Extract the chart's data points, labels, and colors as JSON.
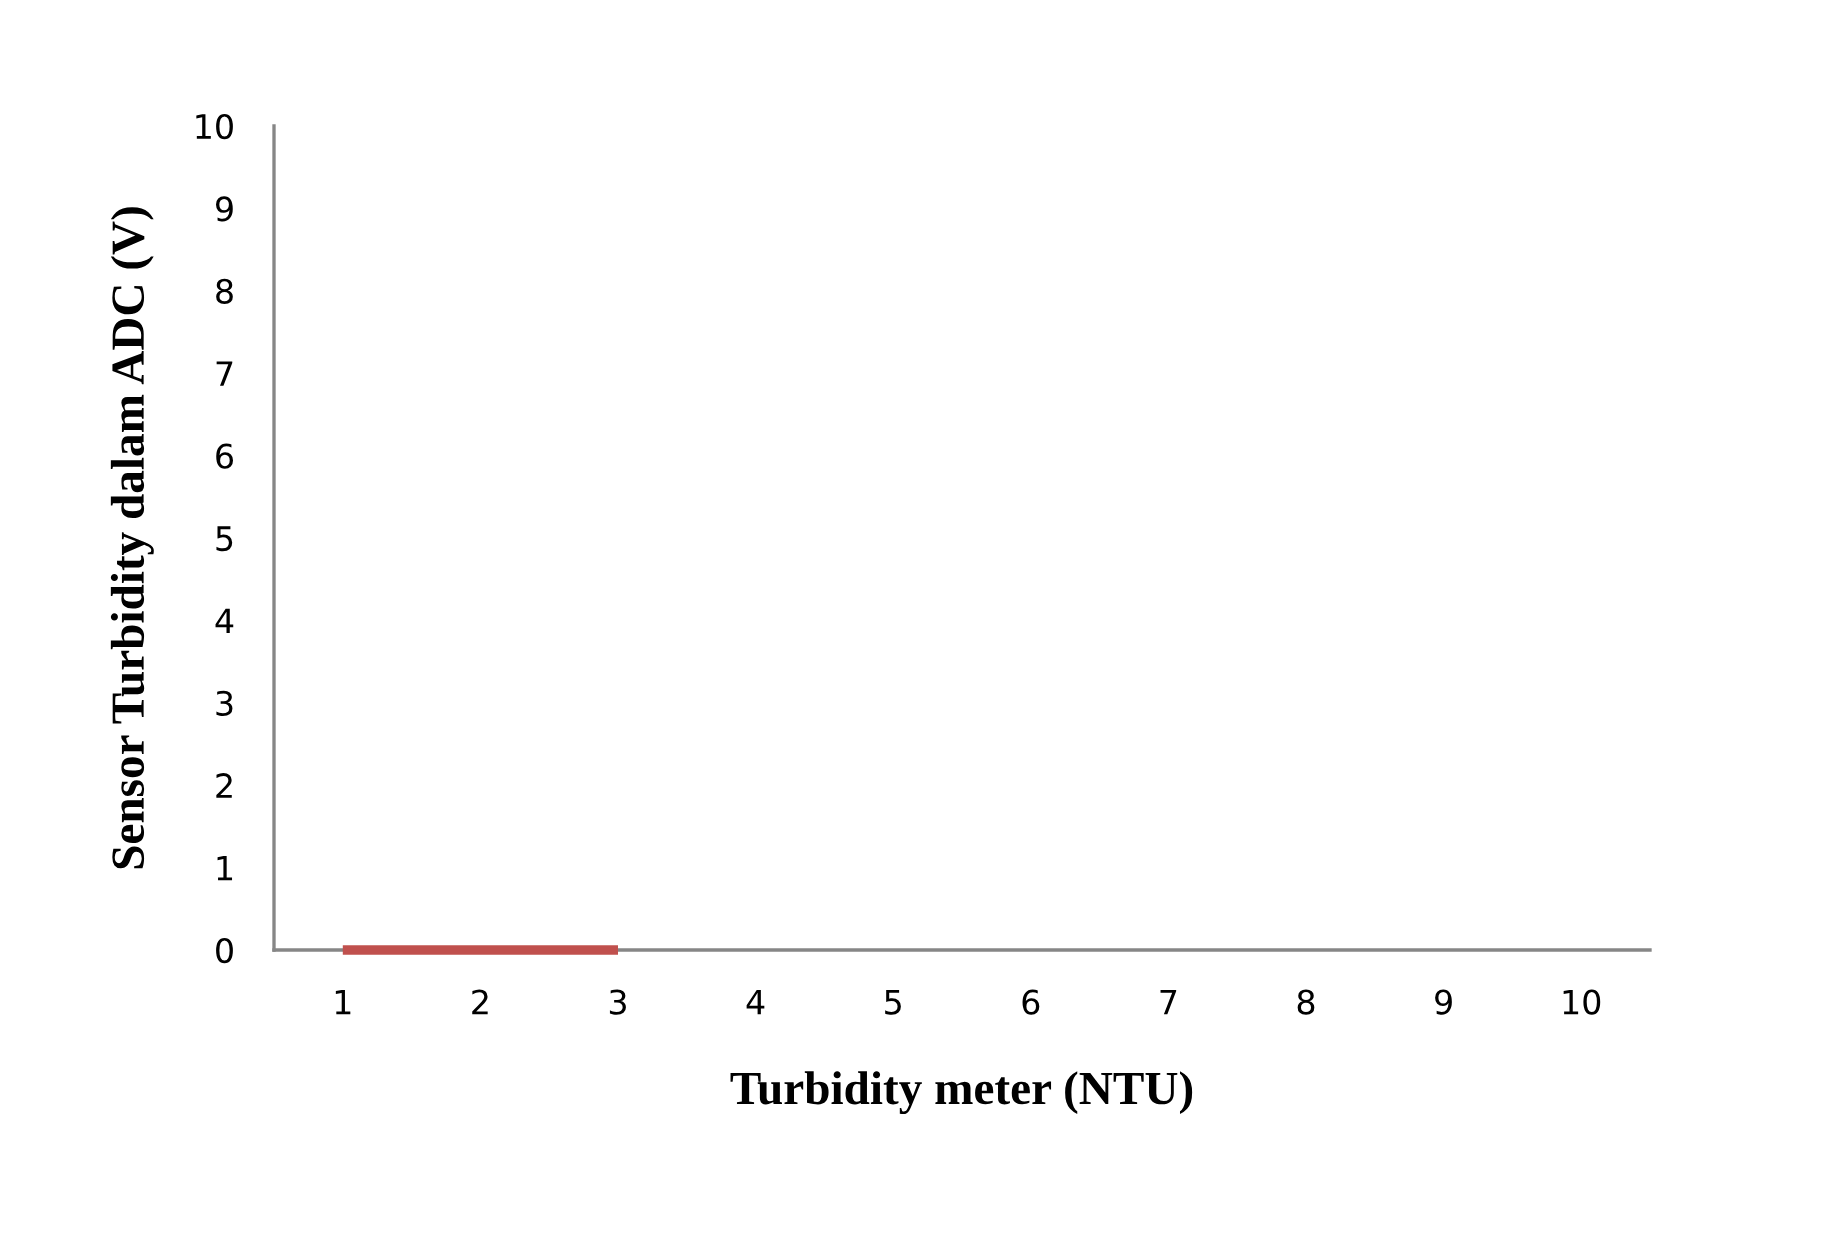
{
  "chart_data": {
    "type": "line",
    "xlabel": "Turbidity meter (NTU)",
    "ylabel": "Sensor Turbidity dalam ADC (V)",
    "categories": [
      "1",
      "2",
      "3",
      "4",
      "5",
      "6",
      "7",
      "8",
      "9",
      "10"
    ],
    "series": [
      {
        "color": "#c0504d",
        "values": [
          0,
          0,
          0,
          null,
          null,
          null,
          null,
          null,
          null,
          null
        ]
      }
    ],
    "ylim": [
      0,
      10
    ],
    "yticks": [
      0,
      1,
      2,
      3,
      4,
      5,
      6,
      7,
      8,
      9,
      10
    ],
    "grid": false,
    "legend": false,
    "marker": "none",
    "line_style": "solid"
  }
}
